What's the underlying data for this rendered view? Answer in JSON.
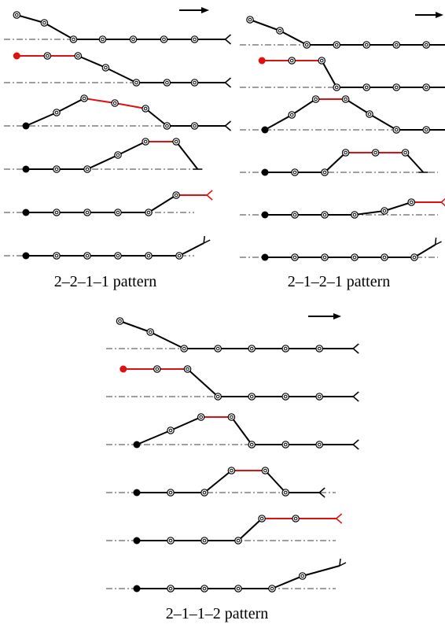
{
  "colors": {
    "stroke": "#000000",
    "highlight": "#e01010",
    "background": "#ffffff"
  },
  "panels": [
    {
      "caption": "2–2–1–1 pattern",
      "rows": [
        {
          "start": "open",
          "segments": [
            "b",
            "b",
            "b",
            "b",
            "b",
            "b"
          ],
          "end": "fork-right"
        },
        {
          "start": "red",
          "segments": [
            "r",
            "r",
            "b",
            "b",
            "b",
            "b"
          ],
          "end": "fork-right"
        },
        {
          "start": "filled",
          "segments": [
            "b",
            "b",
            "r",
            "r",
            "b",
            "b"
          ],
          "end": "fork-right"
        },
        {
          "start": "filled",
          "segments": [
            "b",
            "b",
            "b",
            "b",
            "r",
            "b"
          ],
          "end": "fork-down"
        },
        {
          "start": "filled",
          "segments": [
            "b",
            "b",
            "b",
            "b",
            "b",
            "r"
          ],
          "end": "fork-right"
        },
        {
          "start": "filled",
          "segments": [
            "b",
            "b",
            "b",
            "b",
            "b",
            "b"
          ],
          "end": "fork-up"
        }
      ]
    },
    {
      "caption": "2–1–2–1 pattern",
      "rows": [
        {
          "start": "open",
          "segments": [
            "b",
            "b",
            "b",
            "b",
            "b",
            "b"
          ],
          "end": "fork-right"
        },
        {
          "start": "red",
          "segments": [
            "r",
            "r",
            "b",
            "b",
            "b",
            "b"
          ],
          "end": "fork-right"
        },
        {
          "start": "filled",
          "segments": [
            "b",
            "b",
            "r",
            "b",
            "b",
            "b"
          ],
          "end": "fork-right"
        },
        {
          "start": "filled",
          "segments": [
            "b",
            "b",
            "b",
            "r",
            "r",
            "b"
          ],
          "end": "fork-down"
        },
        {
          "start": "filled",
          "segments": [
            "b",
            "b",
            "b",
            "b",
            "b",
            "r"
          ],
          "end": "fork-right"
        },
        {
          "start": "filled",
          "segments": [
            "b",
            "b",
            "b",
            "b",
            "b",
            "b"
          ],
          "end": "fork-up"
        }
      ]
    },
    {
      "caption": "2–1–1–2 pattern",
      "rows": [
        {
          "start": "open",
          "segments": [
            "b",
            "b",
            "b",
            "b",
            "b",
            "b"
          ],
          "end": "fork-right"
        },
        {
          "start": "red",
          "segments": [
            "r",
            "r",
            "b",
            "b",
            "b",
            "b"
          ],
          "end": "fork-right"
        },
        {
          "start": "filled",
          "segments": [
            "b",
            "b",
            "r",
            "b",
            "b",
            "b"
          ],
          "end": "fork-right"
        },
        {
          "start": "filled",
          "segments": [
            "b",
            "b",
            "b",
            "r",
            "b",
            "b"
          ],
          "end": "fork-right"
        },
        {
          "start": "filled",
          "segments": [
            "b",
            "b",
            "b",
            "b",
            "r",
            "r"
          ],
          "end": "fork-right"
        },
        {
          "start": "filled",
          "segments": [
            "b",
            "b",
            "b",
            "b",
            "b",
            "b"
          ],
          "end": "fork-up"
        }
      ]
    }
  ]
}
